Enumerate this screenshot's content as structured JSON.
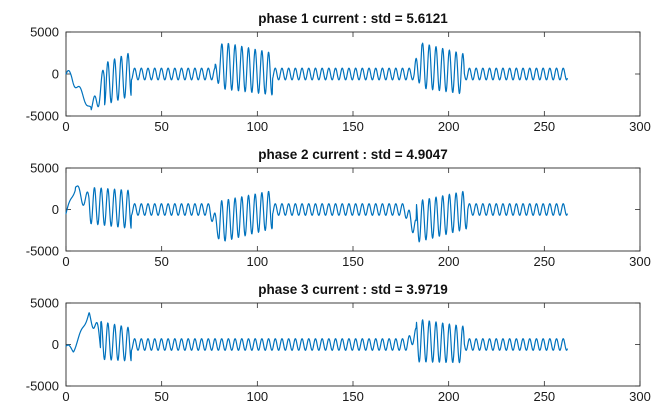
{
  "figure": {
    "plots": [
      {
        "title": "phase 1 current : std = 5.6121"
      },
      {
        "title": "phase 2 current : std = 4.9047"
      },
      {
        "title": "phase 3 current : std = 3.9719"
      }
    ]
  },
  "chart_data": [
    {
      "type": "line",
      "title": "phase 1 current : std = 5.6121",
      "xlabel": "",
      "ylabel": "",
      "xlim": [
        0,
        300
      ],
      "ylim": [
        -5000,
        5000
      ],
      "xticks": [
        0,
        50,
        100,
        150,
        200,
        250,
        300
      ],
      "yticks": [
        -5000,
        0,
        5000
      ],
      "grid": false,
      "color": "#0072BD",
      "series": [
        {
          "x_range": [
            0,
            262
          ],
          "segments": [
            {
              "x": [
                0,
                3
              ],
              "offset": [
                0,
                -400
              ],
              "amplitude": [
                600,
                600
              ],
              "period": 6
            },
            {
              "x": [
                3,
                13
              ],
              "offset": [
                -400,
                -4200
              ],
              "amplitude": [
                600,
                300
              ],
              "period": 6
            },
            {
              "x": [
                13,
                20
              ],
              "offset": [
                -4200,
                -1200
              ],
              "amplitude": [
                300,
                2200
              ],
              "period": 4.5
            },
            {
              "x": [
                20,
                34
              ],
              "offset": [
                -1200,
                0
              ],
              "amplitude": [
                2500,
                2600
              ],
              "period": 3.5
            },
            {
              "x": [
                34,
                78
              ],
              "offset": [
                0,
                0
              ],
              "amplitude": [
                700,
                700
              ],
              "period": 3.5
            },
            {
              "x": [
                78,
                82
              ],
              "offset": [
                0,
                1500
              ],
              "amplitude": [
                1200,
                2500
              ],
              "period": 3.5
            },
            {
              "x": [
                82,
                108
              ],
              "offset": [
                1000,
                0
              ],
              "amplitude": [
                2800,
                2500
              ],
              "period": 3.5
            },
            {
              "x": [
                108,
                182
              ],
              "offset": [
                0,
                0
              ],
              "amplitude": [
                700,
                700
              ],
              "period": 3.5
            },
            {
              "x": [
                182,
                186
              ],
              "offset": [
                0,
                1500
              ],
              "amplitude": [
                1200,
                2500
              ],
              "period": 3.5
            },
            {
              "x": [
                186,
                208
              ],
              "offset": [
                1000,
                0
              ],
              "amplitude": [
                2700,
                2400
              ],
              "period": 3.5
            },
            {
              "x": [
                208,
                262
              ],
              "offset": [
                0,
                0
              ],
              "amplitude": [
                700,
                700
              ],
              "period": 3.5
            }
          ]
        }
      ]
    },
    {
      "type": "line",
      "title": "phase 2 current : std = 4.9047",
      "xlabel": "",
      "ylabel": "",
      "xlim": [
        0,
        300
      ],
      "ylim": [
        -5000,
        5000
      ],
      "xticks": [
        0,
        50,
        100,
        150,
        200,
        250,
        300
      ],
      "yticks": [
        -5000,
        0,
        5000
      ],
      "grid": false,
      "color": "#0072BD",
      "series": [
        {
          "x_range": [
            0,
            262
          ],
          "segments": [
            {
              "x": [
                0,
                5
              ],
              "offset": [
                -500,
                2700
              ],
              "amplitude": [
                300,
                300
              ],
              "period": 6
            },
            {
              "x": [
                5,
                12
              ],
              "offset": [
                2700,
                500
              ],
              "amplitude": [
                300,
                1500
              ],
              "period": 5
            },
            {
              "x": [
                12,
                34
              ],
              "offset": [
                500,
                0
              ],
              "amplitude": [
                2200,
                2300
              ],
              "period": 3.5
            },
            {
              "x": [
                34,
                75
              ],
              "offset": [
                0,
                0
              ],
              "amplitude": [
                700,
                700
              ],
              "period": 3.5
            },
            {
              "x": [
                75,
                80
              ],
              "offset": [
                0,
                -2500
              ],
              "amplitude": [
                700,
                1200
              ],
              "period": 3.5
            },
            {
              "x": [
                80,
                108
              ],
              "offset": [
                -1500,
                0
              ],
              "amplitude": [
                2500,
                2300
              ],
              "period": 3.5
            },
            {
              "x": [
                108,
                177
              ],
              "offset": [
                0,
                0
              ],
              "amplitude": [
                700,
                700
              ],
              "period": 3.5
            },
            {
              "x": [
                177,
                183
              ],
              "offset": [
                0,
                -2500
              ],
              "amplitude": [
                700,
                1200
              ],
              "period": 3.5
            },
            {
              "x": [
                183,
                210
              ],
              "offset": [
                -1500,
                0
              ],
              "amplitude": [
                2500,
                2300
              ],
              "period": 3.5
            },
            {
              "x": [
                210,
                262
              ],
              "offset": [
                0,
                0
              ],
              "amplitude": [
                700,
                700
              ],
              "period": 3.5
            }
          ]
        }
      ]
    },
    {
      "type": "line",
      "title": "phase 3 current : std = 3.9719",
      "xlabel": "",
      "ylabel": "",
      "xlim": [
        0,
        300
      ],
      "ylim": [
        -5000,
        5000
      ],
      "xticks": [
        0,
        50,
        100,
        150,
        200,
        250,
        300
      ],
      "yticks": [
        -5000,
        0,
        5000
      ],
      "grid": false,
      "color": "#0072BD",
      "series": [
        {
          "x_range": [
            0,
            262
          ],
          "segments": [
            {
              "x": [
                0,
                4
              ],
              "offset": [
                -200,
                -700
              ],
              "amplitude": [
                300,
                300
              ],
              "period": 6
            },
            {
              "x": [
                4,
                12
              ],
              "offset": [
                -700,
                3800
              ],
              "amplitude": [
                200,
                300
              ],
              "period": 6
            },
            {
              "x": [
                12,
                18
              ],
              "offset": [
                3800,
                500
              ],
              "amplitude": [
                300,
                1500
              ],
              "period": 5
            },
            {
              "x": [
                18,
                34
              ],
              "offset": [
                500,
                0
              ],
              "amplitude": [
                2300,
                2000
              ],
              "period": 3.5
            },
            {
              "x": [
                34,
                178
              ],
              "offset": [
                0,
                0
              ],
              "amplitude": [
                700,
                700
              ],
              "period": 3.5
            },
            {
              "x": [
                178,
                183
              ],
              "offset": [
                0,
                1200
              ],
              "amplitude": [
                700,
                800
              ],
              "period": 3.5
            },
            {
              "x": [
                183,
                208
              ],
              "offset": [
                500,
                0
              ],
              "amplitude": [
                2600,
                2200
              ],
              "period": 3.5
            },
            {
              "x": [
                208,
                262
              ],
              "offset": [
                0,
                0
              ],
              "amplitude": [
                700,
                700
              ],
              "period": 3.5
            }
          ]
        }
      ]
    }
  ]
}
